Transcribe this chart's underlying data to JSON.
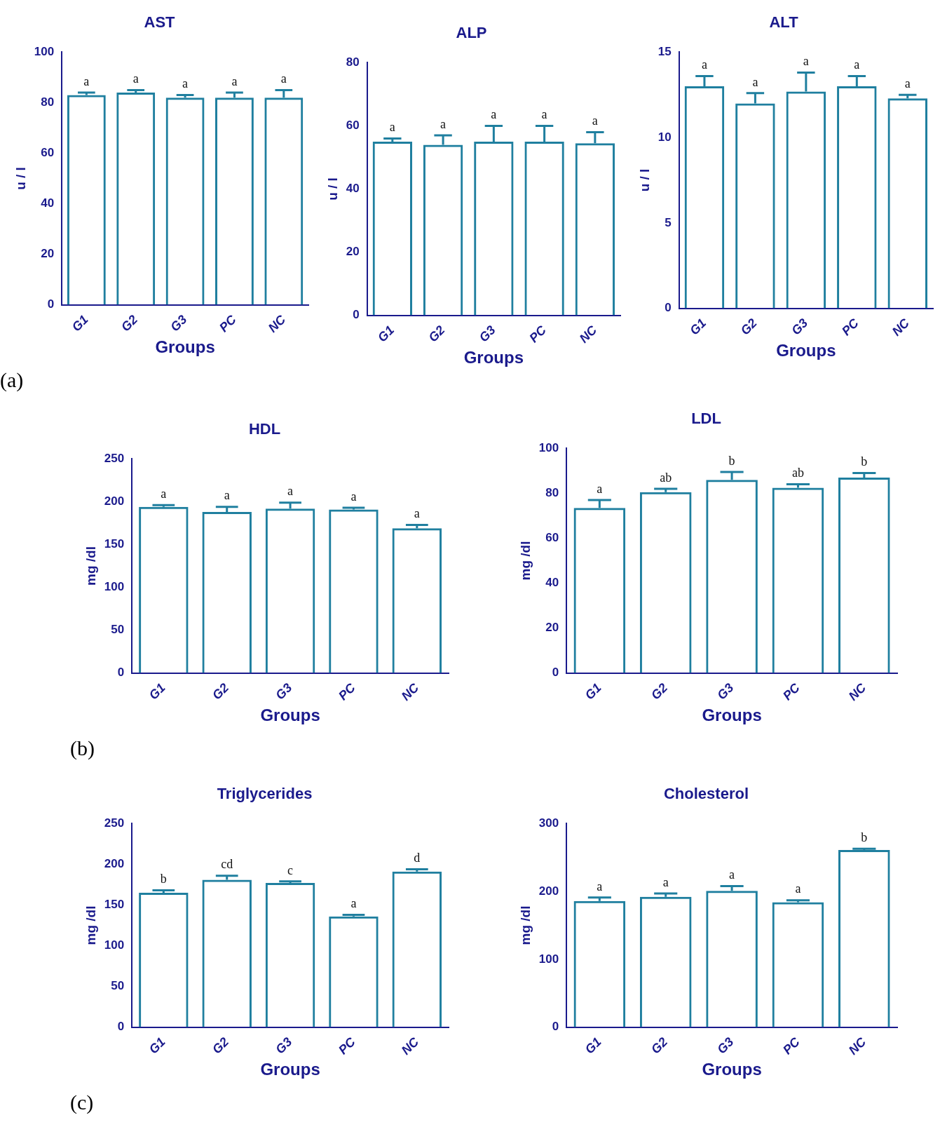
{
  "chart_data": [
    {
      "type": "bar",
      "title": "AST",
      "xlabel": "Groups",
      "ylabel": "u / l",
      "categories": [
        "G1",
        "G2",
        "G3",
        "PC",
        "NC"
      ],
      "values": [
        83,
        84,
        82,
        82,
        82
      ],
      "errors": [
        [
          83,
          84
        ],
        [
          84,
          85
        ],
        [
          82,
          83
        ],
        [
          82,
          84
        ],
        [
          82,
          85
        ]
      ],
      "color": "#1f7f9f",
      "ylim": [
        0,
        100
      ],
      "yticks": [
        0,
        20,
        40,
        60,
        80,
        100
      ],
      "grid": false,
      "legend": false,
      "annotations": [
        {
          "text": "a",
          "x": "G1",
          "y": 84
        },
        {
          "text": "a",
          "x": "G2",
          "y": 85
        },
        {
          "text": "a",
          "x": "G3",
          "y": 83
        },
        {
          "text": "a",
          "x": "PC",
          "y": 84
        },
        {
          "text": "a",
          "x": "NC",
          "y": 85
        },
        "(a)"
      ]
    },
    {
      "type": "bar",
      "title": "ALP",
      "xlabel": "Groups",
      "ylabel": "u / l",
      "categories": [
        "G1",
        "G2",
        "G3",
        "PC",
        "NC"
      ],
      "values": [
        55,
        54,
        55,
        55,
        54.5
      ],
      "errors": [
        [
          55,
          56
        ],
        [
          54,
          57
        ],
        [
          55,
          60
        ],
        [
          55,
          60
        ],
        [
          54.5,
          58
        ]
      ],
      "color": "#1f7f9f",
      "ylim": [
        0,
        80
      ],
      "yticks": [
        0,
        20,
        40,
        60,
        80
      ],
      "grid": false,
      "legend": false,
      "annotations": [
        {
          "text": "a",
          "x": "G1",
          "y": 56
        },
        {
          "text": "a",
          "x": "G2",
          "y": 57
        },
        {
          "text": "a",
          "x": "G3",
          "y": 60
        },
        {
          "text": "a",
          "x": "PC",
          "y": 60
        },
        {
          "text": "a",
          "x": "NC",
          "y": 58
        }
      ]
    },
    {
      "type": "bar",
      "title": "ALT",
      "xlabel": "Groups",
      "ylabel": "u / l",
      "categories": [
        "G1",
        "G2",
        "G3",
        "PC",
        "NC"
      ],
      "values": [
        13,
        12,
        12.7,
        13,
        12.3
      ],
      "errors": [
        [
          13,
          13.6
        ],
        [
          12,
          12.6
        ],
        [
          12.7,
          13.8
        ],
        [
          13,
          13.6
        ],
        [
          12.3,
          12.5
        ]
      ],
      "color": "#1f7f9f",
      "ylim": [
        0,
        15
      ],
      "yticks": [
        0,
        5,
        10,
        15
      ],
      "grid": false,
      "legend": false,
      "annotations": [
        {
          "text": "a",
          "x": "G1",
          "y": 13.6
        },
        {
          "text": "a",
          "x": "G2",
          "y": 12.6
        },
        {
          "text": "a",
          "x": "G3",
          "y": 13.8
        },
        {
          "text": "a",
          "x": "PC",
          "y": 13.6
        },
        {
          "text": "a",
          "x": "NC",
          "y": 12.5
        }
      ]
    },
    {
      "type": "bar",
      "title": "HDL",
      "xlabel": "Groups",
      "ylabel": "mg /dl",
      "categories": [
        "G1",
        "G2",
        "G3",
        "PC",
        "NC"
      ],
      "values": [
        194,
        188,
        192,
        191,
        169
      ],
      "errors": [
        [
          194,
          196
        ],
        [
          188,
          194
        ],
        [
          192,
          199
        ],
        [
          191,
          193
        ],
        [
          169,
          173
        ]
      ],
      "color": "#1f7f9f",
      "ylim": [
        0,
        250
      ],
      "yticks": [
        0,
        50,
        100,
        150,
        200,
        250
      ],
      "grid": false,
      "legend": false,
      "annotations": [
        {
          "text": "a",
          "x": "G1",
          "y": 196
        },
        {
          "text": "a",
          "x": "G2",
          "y": 194
        },
        {
          "text": "a",
          "x": "G3",
          "y": 199
        },
        {
          "text": "a",
          "x": "PC",
          "y": 193
        },
        {
          "text": "a",
          "x": "NC",
          "y": 173
        },
        "(b)"
      ]
    },
    {
      "type": "bar",
      "title": "LDL",
      "xlabel": "Groups",
      "ylabel": "mg /dl",
      "categories": [
        "G1",
        "G2",
        "G3",
        "PC",
        "NC"
      ],
      "values": [
        73.5,
        80.5,
        86,
        82.5,
        87
      ],
      "errors": [
        [
          73.5,
          77
        ],
        [
          80.5,
          82
        ],
        [
          86,
          89.5
        ],
        [
          82.5,
          84
        ],
        [
          87,
          89
        ]
      ],
      "color": "#1f7f9f",
      "ylim": [
        0,
        100
      ],
      "yticks": [
        0,
        20,
        40,
        60,
        80,
        100
      ],
      "grid": false,
      "legend": false,
      "annotations": [
        {
          "text": "a",
          "x": "G1",
          "y": 77
        },
        {
          "text": "ab",
          "x": "G2",
          "y": 82
        },
        {
          "text": "b",
          "x": "G3",
          "y": 89.5
        },
        {
          "text": "ab",
          "x": "PC",
          "y": 84
        },
        {
          "text": "b",
          "x": "NC",
          "y": 89
        }
      ]
    },
    {
      "type": "bar",
      "title": "Triglycerides",
      "xlabel": "Groups",
      "ylabel": "mg /dl",
      "categories": [
        "G1",
        "G2",
        "G3",
        "PC",
        "NC"
      ],
      "values": [
        165,
        181,
        177,
        136,
        191
      ],
      "errors": [
        [
          165,
          168
        ],
        [
          181,
          186
        ],
        [
          177,
          179
        ],
        [
          136,
          138
        ],
        [
          191,
          194
        ]
      ],
      "color": "#1f7f9f",
      "ylim": [
        0,
        250
      ],
      "yticks": [
        0,
        50,
        100,
        150,
        200,
        250
      ],
      "grid": false,
      "legend": false,
      "annotations": [
        {
          "text": "b",
          "x": "G1",
          "y": 168
        },
        {
          "text": "cd",
          "x": "G2",
          "y": 186
        },
        {
          "text": "c",
          "x": "G3",
          "y": 179
        },
        {
          "text": "a",
          "x": "PC",
          "y": 138
        },
        {
          "text": "d",
          "x": "NC",
          "y": 194
        },
        "(c)"
      ]
    },
    {
      "type": "bar",
      "title": "Cholesterol",
      "xlabel": "Groups",
      "ylabel": "mg /dl",
      "categories": [
        "G1",
        "G2",
        "G3",
        "PC",
        "NC"
      ],
      "values": [
        186,
        192,
        201,
        184,
        261
      ],
      "errors": [
        [
          186,
          191
        ],
        [
          192,
          197
        ],
        [
          201,
          208
        ],
        [
          184,
          187
        ],
        [
          261,
          263
        ]
      ],
      "color": "#1f7f9f",
      "ylim": [
        0,
        300
      ],
      "yticks": [
        0,
        100,
        200,
        300
      ],
      "grid": false,
      "legend": false,
      "annotations": [
        {
          "text": "a",
          "x": "G1",
          "y": 191
        },
        {
          "text": "a",
          "x": "G2",
          "y": 197
        },
        {
          "text": "a",
          "x": "G3",
          "y": 208
        },
        {
          "text": "a",
          "x": "PC",
          "y": 187
        },
        {
          "text": "b",
          "x": "NC",
          "y": 263
        }
      ]
    }
  ]
}
